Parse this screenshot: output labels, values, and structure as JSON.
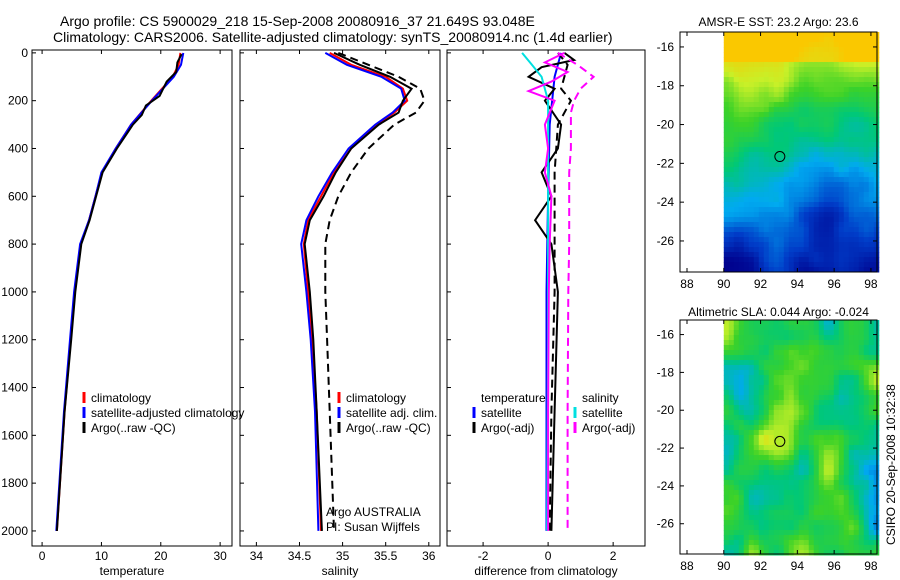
{
  "header": {
    "line1": "Argo profile: CS 5900029_218 15-Sep-2008 20080916_37 21.649S 93.048E",
    "line2": "Climatology: CARS2006. Satellite-adjusted climatology: synTS_20080914.nc (1.4d earlier)"
  },
  "side_stamp": "CSIRO 20-Sep-2008 10:32:38",
  "chart_data": [
    {
      "type": "line",
      "xlabel": "temperature",
      "ylabel": "",
      "xlim": [
        -1.7,
        32
      ],
      "ylim": [
        2063,
        -12
      ],
      "xticks": [
        "0",
        "10",
        "20",
        "30"
      ],
      "xtick_values": [
        0,
        10,
        20,
        30
      ],
      "yticks": [
        "0",
        "200",
        "400",
        "600",
        "800",
        "1000",
        "1200",
        "1400",
        "1600",
        "1800",
        "2000"
      ],
      "ytick_values": [
        0,
        200,
        400,
        600,
        800,
        1000,
        1200,
        1400,
        1600,
        1800,
        2000
      ],
      "legend": [
        "climatology",
        "satellite-adjusted climatology",
        "Argo(..raw -QC)"
      ],
      "series": [
        {
          "name": "climatology",
          "color": "#ff0000",
          "dash": false,
          "depth": [
            0,
            50,
            100,
            200,
            300,
            400,
            500,
            600,
            700,
            800,
            1000,
            1200,
            1500,
            2000
          ],
          "values": [
            23.3,
            23.0,
            22.0,
            18.4,
            15.0,
            12.4,
            10.1,
            9.0,
            7.9,
            6.5,
            5.5,
            4.8,
            3.8,
            2.5
          ]
        },
        {
          "name": "satellite-adjusted climatology",
          "color": "#0000ff",
          "dash": false,
          "depth": [
            0,
            50,
            100,
            200,
            300,
            400,
            500,
            600,
            700,
            800,
            1000,
            1200,
            1500,
            2000
          ],
          "values": [
            23.8,
            23.4,
            22.2,
            18.5,
            15.0,
            12.4,
            10.0,
            9.0,
            7.9,
            6.4,
            5.4,
            4.7,
            3.7,
            2.4
          ]
        },
        {
          "name": "Argo(..raw -QC)",
          "color": "#000000",
          "dash": false,
          "depth": [
            5,
            40,
            80,
            120,
            180,
            220,
            260,
            300,
            400,
            500,
            600,
            700,
            800,
            1000,
            1200,
            1500,
            2000
          ],
          "values": [
            23.5,
            22.8,
            22.6,
            21.0,
            19.8,
            17.5,
            16.8,
            15.3,
            12.6,
            10.2,
            9.1,
            8.0,
            6.6,
            5.6,
            4.9,
            3.8,
            2.5
          ]
        }
      ],
      "annotations": []
    },
    {
      "type": "line",
      "xlabel": "salinity",
      "xlim": [
        33.81,
        36.13
      ],
      "ylim": [
        2063,
        -12
      ],
      "xticks": [
        "34",
        "34.5",
        "35",
        "35.5",
        "36"
      ],
      "xtick_values": [
        34,
        34.5,
        35,
        35.5,
        36
      ],
      "legend": [
        "climatology",
        "satellite adj. clim.",
        "Argo(..raw -QC)"
      ],
      "series": [
        {
          "name": "climatology",
          "color": "#ff0000",
          "dash": false,
          "depth": [
            0,
            50,
            100,
            150,
            200,
            250,
            300,
            400,
            500,
            600,
            700,
            800,
            1000,
            1200,
            1500,
            2000
          ],
          "values": [
            34.85,
            35.1,
            35.5,
            35.7,
            35.75,
            35.6,
            35.4,
            35.1,
            34.9,
            34.75,
            34.6,
            34.55,
            34.6,
            34.65,
            34.7,
            34.75
          ]
        },
        {
          "name": "satellite adj. clim.",
          "color": "#0000ff",
          "dash": false,
          "depth": [
            0,
            50,
            100,
            150,
            200,
            250,
            300,
            400,
            500,
            600,
            700,
            800,
            1000,
            1200,
            1500,
            2000
          ],
          "values": [
            34.8,
            35.05,
            35.45,
            35.68,
            35.72,
            35.58,
            35.38,
            35.07,
            34.88,
            34.72,
            34.58,
            34.52,
            34.58,
            34.63,
            34.68,
            34.72
          ]
        },
        {
          "name": "Argo(..raw -QC)",
          "color": "#000000",
          "dash": false,
          "depth": [
            0,
            50,
            100,
            150,
            200,
            250,
            300,
            400,
            500,
            600,
            700,
            800,
            1000,
            1200,
            1500,
            2000
          ],
          "values": [
            34.9,
            35.2,
            35.55,
            35.8,
            35.7,
            35.65,
            35.42,
            35.1,
            34.92,
            34.78,
            34.62,
            34.56,
            34.62,
            34.66,
            34.7,
            34.76
          ]
        },
        {
          "name": "Argo(..raw -QC) adjusted",
          "color": "#000000",
          "dash": true,
          "depth": [
            0,
            50,
            100,
            150,
            200,
            250,
            300,
            400,
            500,
            600,
            700,
            800,
            1000,
            1200,
            1500,
            2000
          ],
          "values": [
            34.95,
            35.3,
            35.65,
            35.9,
            35.95,
            35.85,
            35.6,
            35.3,
            35.1,
            34.95,
            34.85,
            34.8,
            34.8,
            34.82,
            34.85,
            34.9
          ]
        }
      ],
      "annotations": [
        "Argo AUSTRALIA",
        "PI: Susan Wijffels"
      ]
    },
    {
      "type": "line",
      "xlabel": "difference from climatology",
      "xlim": [
        -3.11,
        2.98
      ],
      "ylim": [
        2063,
        -12
      ],
      "xticks": [
        "-2",
        "0",
        "2"
      ],
      "xtick_values": [
        -2,
        0,
        2
      ],
      "legend": [
        "temperature",
        "satellite",
        "Argo(-adj)",
        "salinity",
        "satellite",
        "Argo(-adj)"
      ],
      "series": [
        {
          "name": "temperature satellite",
          "color": "#0000ff",
          "dash": false,
          "depth": [
            0,
            100,
            300,
            600,
            1000,
            2000
          ],
          "values": [
            0.4,
            0.2,
            0.05,
            0,
            -0.05,
            -0.05
          ]
        },
        {
          "name": "temperature Argo",
          "color": "#000000",
          "dash": false,
          "depth": [
            0,
            30,
            60,
            100,
            150,
            200,
            300,
            400,
            500,
            600,
            700,
            800,
            1000,
            1500,
            2000
          ],
          "values": [
            0.5,
            0.8,
            -0.2,
            -0.6,
            0.2,
            -0.1,
            0.4,
            0.3,
            -0.2,
            0.1,
            -0.4,
            0.1,
            0.3,
            0.2,
            0.1
          ]
        },
        {
          "name": "temperature Argo(-adj)",
          "color": "#000000",
          "dash": true,
          "depth": [
            0,
            50,
            100,
            150,
            200,
            300,
            500,
            800,
            1000,
            1500,
            2000
          ],
          "values": [
            0.3,
            0.6,
            0.5,
            0.4,
            0.7,
            0.3,
            0.2,
            0.2,
            0.2,
            0.1,
            0.05
          ]
        },
        {
          "name": "salinity satellite",
          "color": "#00e0e0",
          "dash": false,
          "depth": [
            0,
            50,
            100,
            200,
            400,
            800,
            1200,
            2000
          ],
          "values": [
            -0.8,
            -0.5,
            -0.2,
            0,
            0,
            0,
            0,
            -0.03
          ]
        },
        {
          "name": "salinity Argo",
          "color": "#ff00ff",
          "dash": false,
          "depth": [
            0,
            40,
            80,
            120,
            160,
            200,
            300,
            400,
            500,
            600,
            800,
            1000,
            1500,
            2000
          ],
          "values": [
            0.5,
            -0.1,
            0.6,
            0.1,
            -0.6,
            0.2,
            -0.1,
            0.0,
            -0.1,
            0.1,
            0.05,
            0.02,
            0.0,
            0.0
          ]
        },
        {
          "name": "salinity Argo(-adj)",
          "color": "#ff00ff",
          "dash": true,
          "depth": [
            0,
            50,
            100,
            150,
            200,
            250,
            300,
            400,
            500,
            600,
            800,
            1000,
            1500,
            2000
          ],
          "values": [
            0.3,
            0.9,
            1.4,
            1.0,
            0.8,
            0.7,
            0.7,
            0.7,
            0.65,
            0.65,
            0.65,
            0.62,
            0.6,
            0.6
          ]
        }
      ],
      "annotations": []
    },
    {
      "type": "heatmap",
      "title": "AMSR-E SST: 23.2 Argo: 23.6",
      "xlim": [
        87.62,
        98.33
      ],
      "ylim": [
        -27.6,
        -15.23
      ],
      "xticks": [
        "88",
        "90",
        "92",
        "94",
        "96",
        "98"
      ],
      "xtick_values": [
        88,
        90,
        92,
        94,
        96,
        98
      ],
      "yticks": [
        "-16",
        "-18",
        "-20",
        "-22",
        "-24",
        "-26"
      ],
      "ytick_values": [
        -16,
        -18,
        -20,
        -22,
        -24,
        -26
      ],
      "data_lon_start": 90,
      "argo_position": {
        "lon": 93.048,
        "lat": -21.649
      }
    },
    {
      "type": "heatmap",
      "title": "Altimetric SLA: 0.044 Argo: -0.024",
      "xlim": [
        87.62,
        98.33
      ],
      "ylim": [
        -27.6,
        -15.23
      ],
      "xticks": [
        "88",
        "90",
        "92",
        "94",
        "96",
        "98"
      ],
      "xtick_values": [
        88,
        90,
        92,
        94,
        96,
        98
      ],
      "yticks": [
        "-16",
        "-18",
        "-20",
        "-22",
        "-24",
        "-26"
      ],
      "ytick_values": [
        -16,
        -18,
        -20,
        -22,
        -24,
        -26
      ],
      "data_lon_start": 90,
      "argo_position": {
        "lon": 93.048,
        "lat": -21.649
      }
    }
  ]
}
